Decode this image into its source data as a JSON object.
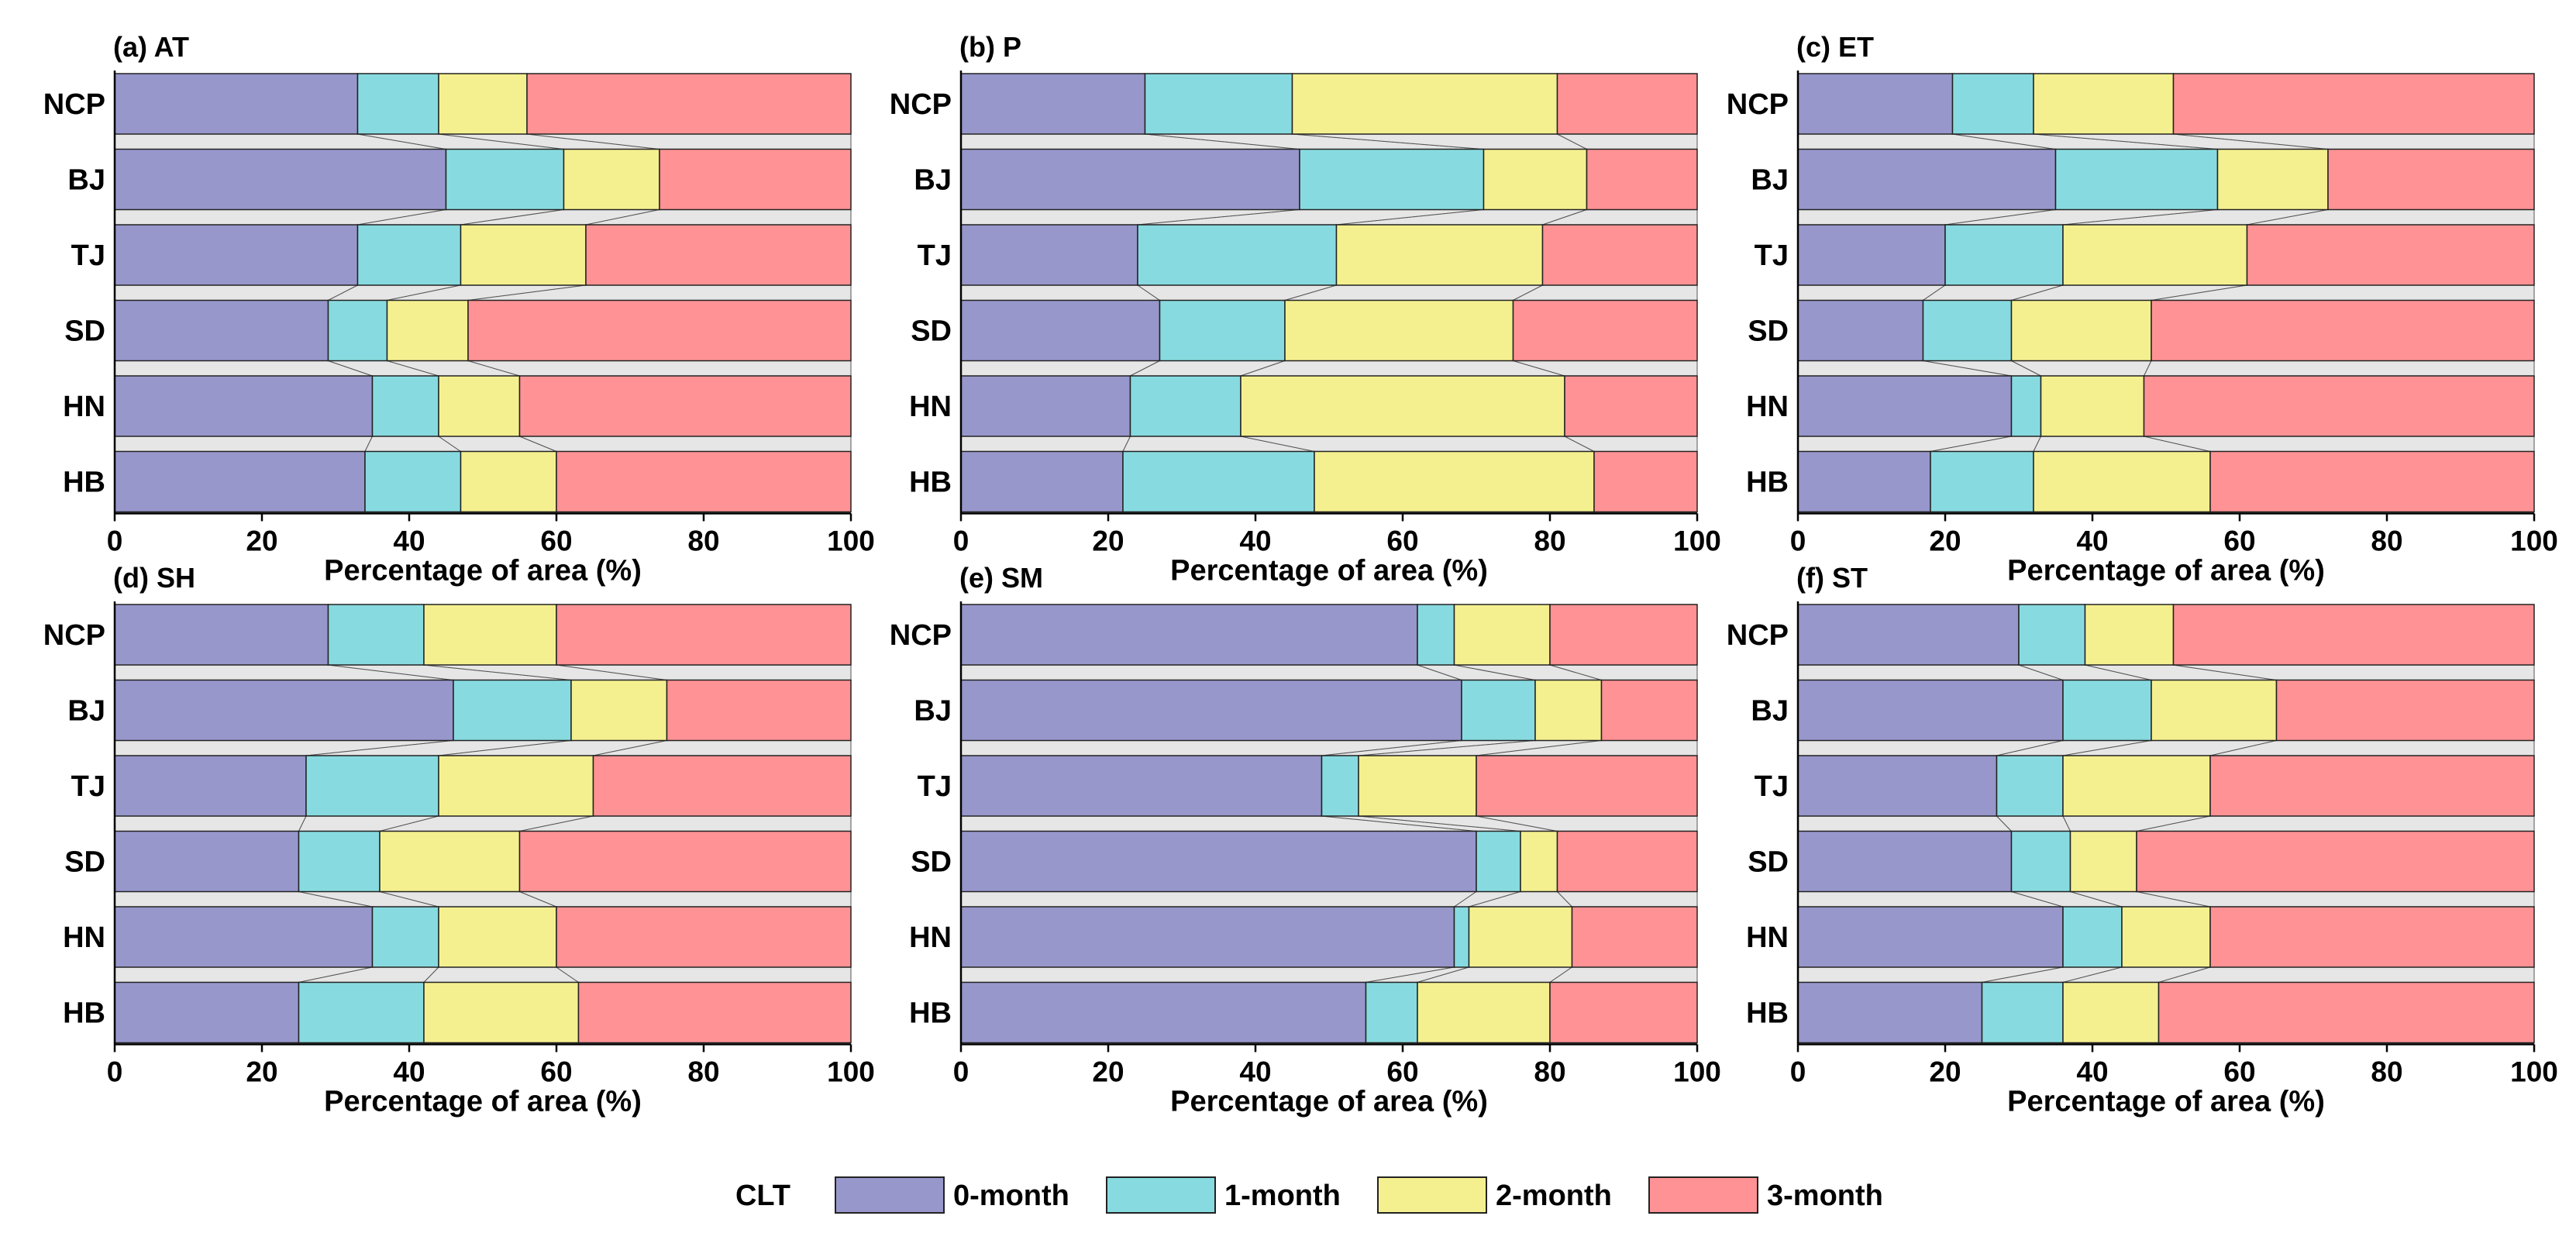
{
  "colors": {
    "0-month": "#9797cc",
    "1-month": "#87dbe0",
    "2-month": "#f5f08f",
    "3-month": "#ff9294",
    "connector": "#e6e6e6"
  },
  "legend": {
    "title": "CLT",
    "items": [
      "0-month",
      "1-month",
      "2-month",
      "3-month"
    ]
  },
  "chart_data": [
    {
      "type": "bar",
      "orientation": "horizontal",
      "stacked": true,
      "title": "(a) AT",
      "categories": [
        "NCP",
        "BJ",
        "TJ",
        "SD",
        "HN",
        "HB"
      ],
      "xlabel": "Percentage of area (%)",
      "ylabel": "",
      "xlim": [
        0,
        100
      ],
      "xticks": [
        "0",
        "20",
        "40",
        "60",
        "80",
        "100"
      ],
      "series": [
        {
          "name": "0-month",
          "values": [
            33,
            45,
            33,
            29,
            35,
            34
          ]
        },
        {
          "name": "1-month",
          "values": [
            11,
            16,
            14,
            8,
            9,
            13
          ]
        },
        {
          "name": "2-month",
          "values": [
            12,
            13,
            17,
            11,
            11,
            13
          ]
        },
        {
          "name": "3-month",
          "values": [
            44,
            26,
            36,
            52,
            45,
            40
          ]
        }
      ]
    },
    {
      "type": "bar",
      "orientation": "horizontal",
      "stacked": true,
      "title": "(b) P",
      "categories": [
        "NCP",
        "BJ",
        "TJ",
        "SD",
        "HN",
        "HB"
      ],
      "xlabel": "Percentage of area (%)",
      "ylabel": "",
      "xlim": [
        0,
        100
      ],
      "xticks": [
        "0",
        "20",
        "40",
        "60",
        "80",
        "100"
      ],
      "series": [
        {
          "name": "0-month",
          "values": [
            25,
            46,
            24,
            27,
            23,
            22
          ]
        },
        {
          "name": "1-month",
          "values": [
            20,
            25,
            27,
            17,
            15,
            26
          ]
        },
        {
          "name": "2-month",
          "values": [
            36,
            14,
            28,
            31,
            44,
            38
          ]
        },
        {
          "name": "3-month",
          "values": [
            19,
            15,
            21,
            25,
            18,
            14
          ]
        }
      ]
    },
    {
      "type": "bar",
      "orientation": "horizontal",
      "stacked": true,
      "title": "(c) ET",
      "categories": [
        "NCP",
        "BJ",
        "TJ",
        "SD",
        "HN",
        "HB"
      ],
      "xlabel": "Percentage of area (%)",
      "ylabel": "",
      "xlim": [
        0,
        100
      ],
      "xticks": [
        "0",
        "20",
        "40",
        "60",
        "80",
        "100"
      ],
      "series": [
        {
          "name": "0-month",
          "values": [
            21,
            35,
            20,
            17,
            29,
            18
          ]
        },
        {
          "name": "1-month",
          "values": [
            11,
            22,
            16,
            12,
            4,
            14
          ]
        },
        {
          "name": "2-month",
          "values": [
            19,
            15,
            25,
            19,
            14,
            24
          ]
        },
        {
          "name": "3-month",
          "values": [
            49,
            28,
            39,
            52,
            53,
            44
          ]
        }
      ]
    },
    {
      "type": "bar",
      "orientation": "horizontal",
      "stacked": true,
      "title": "(d) SH",
      "categories": [
        "NCP",
        "BJ",
        "TJ",
        "SD",
        "HN",
        "HB"
      ],
      "xlabel": "Percentage of area (%)",
      "ylabel": "",
      "xlim": [
        0,
        100
      ],
      "xticks": [
        "0",
        "20",
        "40",
        "60",
        "80",
        "100"
      ],
      "series": [
        {
          "name": "0-month",
          "values": [
            29,
            46,
            26,
            25,
            35,
            25
          ]
        },
        {
          "name": "1-month",
          "values": [
            13,
            16,
            18,
            11,
            9,
            17
          ]
        },
        {
          "name": "2-month",
          "values": [
            18,
            13,
            21,
            19,
            16,
            21
          ]
        },
        {
          "name": "3-month",
          "values": [
            40,
            25,
            35,
            45,
            40,
            37
          ]
        }
      ]
    },
    {
      "type": "bar",
      "orientation": "horizontal",
      "stacked": true,
      "title": "(e) SM",
      "categories": [
        "NCP",
        "BJ",
        "TJ",
        "SD",
        "HN",
        "HB"
      ],
      "xlabel": "Percentage of area (%)",
      "ylabel": "",
      "xlim": [
        0,
        100
      ],
      "xticks": [
        "0",
        "20",
        "40",
        "60",
        "80",
        "100"
      ],
      "series": [
        {
          "name": "0-month",
          "values": [
            62,
            68,
            49,
            70,
            67,
            55
          ]
        },
        {
          "name": "1-month",
          "values": [
            5,
            10,
            5,
            6,
            2,
            7
          ]
        },
        {
          "name": "2-month",
          "values": [
            13,
            9,
            16,
            5,
            14,
            18
          ]
        },
        {
          "name": "3-month",
          "values": [
            20,
            13,
            30,
            19,
            17,
            20
          ]
        }
      ]
    },
    {
      "type": "bar",
      "orientation": "horizontal",
      "stacked": true,
      "title": "(f) ST",
      "categories": [
        "NCP",
        "BJ",
        "TJ",
        "SD",
        "HN",
        "HB"
      ],
      "xlabel": "Percentage of area (%)",
      "ylabel": "",
      "xlim": [
        0,
        100
      ],
      "xticks": [
        "0",
        "20",
        "40",
        "60",
        "80",
        "100"
      ],
      "series": [
        {
          "name": "0-month",
          "values": [
            30,
            36,
            27,
            29,
            36,
            25
          ]
        },
        {
          "name": "1-month",
          "values": [
            9,
            12,
            9,
            8,
            8,
            11
          ]
        },
        {
          "name": "2-month",
          "values": [
            12,
            17,
            20,
            9,
            12,
            13
          ]
        },
        {
          "name": "3-month",
          "values": [
            49,
            35,
            44,
            54,
            44,
            51
          ]
        }
      ]
    }
  ]
}
